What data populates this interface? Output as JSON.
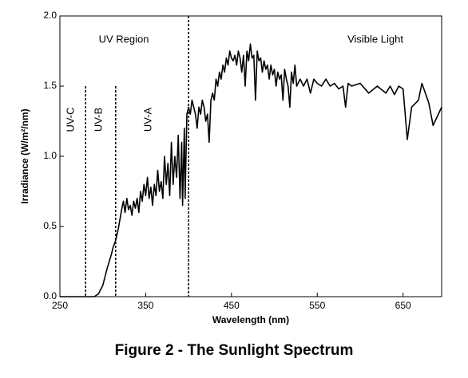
{
  "chart_data": {
    "type": "line",
    "title": "Figure 2 - The Sunlight Spectrum",
    "x_label": "Wavelength (nm)",
    "y_label": "Irradiance (W/m²/nm)",
    "xlim": [
      250,
      695
    ],
    "ylim": [
      0,
      2
    ],
    "xticks": [
      250,
      350,
      450,
      550,
      650
    ],
    "yticks": [
      {
        "value": 0,
        "label": "0.0"
      },
      {
        "value": 0.5,
        "label": "0.5"
      },
      {
        "value": 1,
        "label": "1.0"
      },
      {
        "value": 1.5,
        "label": "1.5"
      },
      {
        "value": 2,
        "label": "2.0"
      }
    ],
    "boundaries": [
      {
        "x": 280,
        "ymax": 1.5
      },
      {
        "x": 315,
        "ymax": 1.5
      },
      {
        "x": 400,
        "ymax": 2
      }
    ],
    "regions": [
      "UV Region",
      "Visible Light"
    ],
    "bands": [
      "UV-C",
      "UV-B",
      "UV-A"
    ],
    "series": [
      {
        "name": "Irradiance",
        "color": "#000000",
        "x": [
          250,
          290,
          295,
          300,
          305,
          310,
          312,
          315,
          318,
          320,
          322,
          324,
          326,
          328,
          330,
          332,
          334,
          336,
          338,
          340,
          342,
          344,
          346,
          348,
          350,
          352,
          354,
          356,
          358,
          360,
          362,
          364,
          366,
          368,
          370,
          372,
          374,
          376,
          378,
          380,
          382,
          384,
          386,
          388,
          390,
          392,
          393,
          395,
          396,
          398,
          400,
          402,
          404,
          406,
          408,
          410,
          412,
          414,
          416,
          418,
          420,
          422,
          424,
          426,
          428,
          430,
          432,
          434,
          436,
          438,
          440,
          442,
          444,
          446,
          448,
          450,
          452,
          454,
          456,
          458,
          460,
          462,
          464,
          466,
          468,
          470,
          472,
          474,
          476,
          478,
          480,
          482,
          484,
          486,
          488,
          490,
          492,
          494,
          496,
          498,
          500,
          502,
          504,
          506,
          508,
          510,
          512,
          514,
          516,
          518,
          520,
          522,
          524,
          526,
          530,
          534,
          538,
          542,
          546,
          550,
          555,
          560,
          565,
          570,
          575,
          580,
          583,
          586,
          590,
          600,
          610,
          620,
          630,
          635,
          640,
          645,
          650,
          655,
          660,
          668,
          672,
          680,
          685,
          695
        ],
        "values": [
          0,
          0,
          0.02,
          0.08,
          0.2,
          0.3,
          0.35,
          0.4,
          0.48,
          0.55,
          0.62,
          0.68,
          0.6,
          0.7,
          0.62,
          0.65,
          0.58,
          0.68,
          0.63,
          0.7,
          0.6,
          0.75,
          0.68,
          0.8,
          0.72,
          0.85,
          0.7,
          0.78,
          0.65,
          0.8,
          0.72,
          0.9,
          0.75,
          0.82,
          0.7,
          1.0,
          0.8,
          0.95,
          0.72,
          1.1,
          0.8,
          1.0,
          0.85,
          1.15,
          0.7,
          1.1,
          0.65,
          1.2,
          0.7,
          1.3,
          1.35,
          1.3,
          1.4,
          1.35,
          1.3,
          1.2,
          1.35,
          1.3,
          1.4,
          1.35,
          1.25,
          1.3,
          1.1,
          1.4,
          1.45,
          1.4,
          1.55,
          1.5,
          1.6,
          1.55,
          1.65,
          1.6,
          1.7,
          1.65,
          1.75,
          1.7,
          1.68,
          1.72,
          1.65,
          1.75,
          1.7,
          1.6,
          1.72,
          1.5,
          1.75,
          1.68,
          1.8,
          1.7,
          1.72,
          1.4,
          1.75,
          1.68,
          1.7,
          1.6,
          1.68,
          1.62,
          1.65,
          1.55,
          1.65,
          1.58,
          1.62,
          1.5,
          1.6,
          1.55,
          1.58,
          1.4,
          1.62,
          1.55,
          1.5,
          1.35,
          1.6,
          1.52,
          1.65,
          1.5,
          1.55,
          1.5,
          1.55,
          1.45,
          1.55,
          1.52,
          1.5,
          1.55,
          1.5,
          1.52,
          1.48,
          1.5,
          1.35,
          1.52,
          1.5,
          1.52,
          1.45,
          1.5,
          1.45,
          1.5,
          1.44,
          1.5,
          1.48,
          1.12,
          1.35,
          1.4,
          1.52,
          1.38,
          1.22,
          1.35
        ]
      }
    ]
  }
}
